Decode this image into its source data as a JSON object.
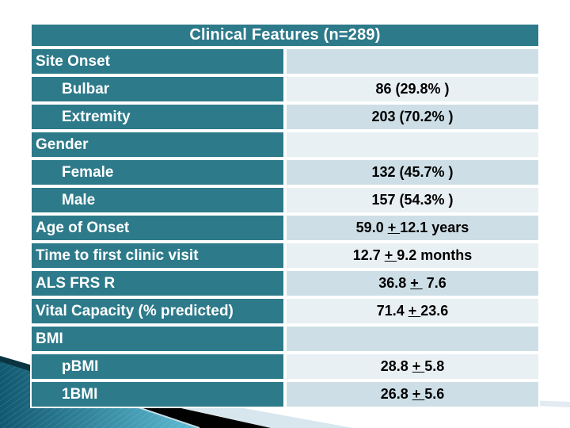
{
  "table": {
    "title": "Clinical Features (n=289)",
    "rows": [
      {
        "label": "Site Onset",
        "value": ""
      },
      {
        "label": "Bulbar",
        "value": "86 (29.8% )"
      },
      {
        "label": "Extremity",
        "value": "203 (70.2% )"
      },
      {
        "label": "Gender",
        "value": ""
      },
      {
        "label": "Female",
        "value": "132 (45.7% )"
      },
      {
        "label": "Male",
        "value": "157 (54.3% )"
      },
      {
        "label": "Age of Onset",
        "value": "59.0 + 12.1 years"
      },
      {
        "label": "Time to first clinic visit",
        "value": "12.7 + 9.2 months"
      },
      {
        "label": "ALS FRS R",
        "value": "36.8 +  7.6"
      },
      {
        "label": "Vital Capacity (% predicted)",
        "value": "71.4 + 23.6"
      },
      {
        "label": "BMI",
        "value": ""
      },
      {
        "label": "pBMI",
        "value": "28.8 + 5.8"
      },
      {
        "label": "1BMI",
        "value": "26.8 + 5.6"
      }
    ]
  },
  "colors": {
    "teal": "#2d7a8a",
    "band_dark": "#cddee6",
    "band_light": "#e9f0f4",
    "swoosh_teal_dark": "#10586f",
    "swoosh_teal_light": "#5fbdd5",
    "swoosh_black": "#010101",
    "swoosh_light_blue": "#d8e6ed",
    "swoosh_navy": "#0b3442"
  }
}
